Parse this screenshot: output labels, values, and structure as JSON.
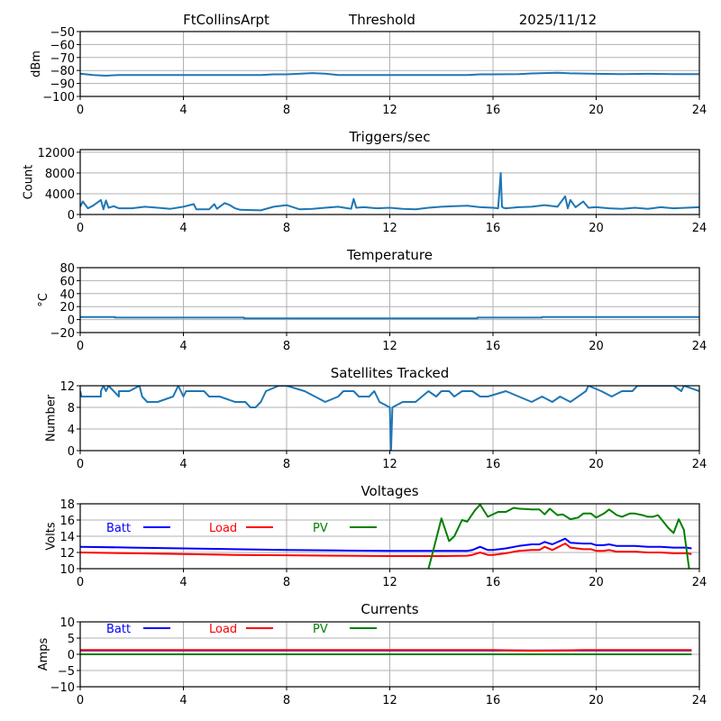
{
  "header": {
    "station": "FtCollinsArpt",
    "mode": "Threshold",
    "date": "2025/11/12"
  },
  "colors": {
    "series_default": "#1f77b4",
    "batt": "#0000ff",
    "load": "#ff0000",
    "pv": "#008000",
    "grid": "#b0b0b0"
  },
  "chart_data": [
    {
      "id": "threshold",
      "type": "line",
      "title": "",
      "xlabel": "",
      "ylabel": "dBm",
      "xlim": [
        0,
        24
      ],
      "ylim": [
        -100,
        -50
      ],
      "xticks": [
        0,
        4,
        8,
        12,
        16,
        20,
        24
      ],
      "yticks": [
        -100,
        -90,
        -80,
        -70,
        -60,
        -50
      ],
      "ytick_labels": [
        "−100",
        "−90",
        "−80",
        "−70",
        "−60",
        "−50"
      ],
      "grid": true,
      "series": [
        {
          "name": "threshold",
          "color": "#1f77b4",
          "x": [
            0,
            0.5,
            1,
            1.5,
            2,
            3,
            4,
            5,
            6,
            7,
            7.5,
            8,
            9,
            9.5,
            10,
            11,
            12,
            13,
            14,
            15,
            15.5,
            16,
            17,
            17.5,
            18,
            18.5,
            19,
            20,
            21,
            22,
            23,
            24
          ],
          "y": [
            -82.5,
            -83.5,
            -84,
            -83.5,
            -83.5,
            -83.5,
            -83.5,
            -83.5,
            -83.5,
            -83.5,
            -83,
            -83,
            -82,
            -82.5,
            -83.5,
            -83.5,
            -83.5,
            -83.5,
            -83.5,
            -83.5,
            -83,
            -83,
            -82.8,
            -82.3,
            -82,
            -81.8,
            -82.2,
            -82.6,
            -82.8,
            -82.6,
            -82.8,
            -82.8
          ]
        }
      ]
    },
    {
      "id": "triggers",
      "type": "line",
      "title": "Triggers/sec",
      "xlabel": "",
      "ylabel": "Count",
      "xlim": [
        0,
        24
      ],
      "ylim": [
        0,
        12500
      ],
      "xticks": [
        0,
        4,
        8,
        12,
        16,
        20,
        24
      ],
      "yticks": [
        0,
        4000,
        8000,
        12000
      ],
      "ytick_labels": [
        "0",
        "4000",
        "8000",
        "12000"
      ],
      "grid": true,
      "series": [
        {
          "name": "triggers",
          "color": "#1f77b4",
          "x": [
            0,
            0.1,
            0.3,
            0.5,
            0.8,
            0.9,
            1.0,
            1.1,
            1.3,
            1.5,
            2,
            2.5,
            3,
            3.5,
            4,
            4.4,
            4.5,
            5,
            5.2,
            5.3,
            5.6,
            5.8,
            6,
            6.2,
            7,
            7.5,
            8,
            8.5,
            9,
            9.5,
            10,
            10.5,
            10.6,
            10.7,
            11,
            11.5,
            12,
            12.5,
            13,
            13.5,
            14,
            14.5,
            15,
            15.5,
            16,
            16.2,
            16.3,
            16.35,
            16.4,
            16.5,
            17,
            17.5,
            18,
            18.5,
            18.8,
            18.9,
            19,
            19.2,
            19.5,
            19.7,
            20,
            20.5,
            21,
            21.5,
            22,
            22.5,
            23,
            23.5,
            24
          ],
          "y": [
            1500,
            2500,
            1200,
            1700,
            2800,
            1000,
            2700,
            1300,
            1600,
            1200,
            1200,
            1500,
            1300,
            1100,
            1500,
            2000,
            1000,
            1000,
            2000,
            1100,
            2200,
            1800,
            1200,
            900,
            800,
            1500,
            1800,
            1000,
            1100,
            1300,
            1500,
            1100,
            3000,
            1300,
            1400,
            1200,
            1300,
            1100,
            1000,
            1300,
            1500,
            1600,
            1700,
            1400,
            1300,
            1200,
            8000,
            1500,
            1300,
            1200,
            1400,
            1500,
            1800,
            1500,
            3500,
            1200,
            2800,
            1400,
            2500,
            1300,
            1400,
            1200,
            1100,
            1300,
            1100,
            1400,
            1200,
            1300,
            1400
          ]
        }
      ]
    },
    {
      "id": "temperature",
      "type": "line",
      "title": "Temperature",
      "xlabel": "",
      "ylabel": "°C",
      "xlim": [
        0,
        24
      ],
      "ylim": [
        -20,
        80
      ],
      "xticks": [
        0,
        4,
        8,
        12,
        16,
        20,
        24
      ],
      "yticks": [
        -20,
        0,
        20,
        40,
        60,
        80
      ],
      "ytick_labels": [
        "−20",
        "0",
        "20",
        "40",
        "60",
        "80"
      ],
      "grid": true,
      "series": [
        {
          "name": "temperature",
          "color": "#1f77b4",
          "x": [
            0,
            1.35,
            1.35,
            6.35,
            6.35,
            15.4,
            15.4,
            17.9,
            17.9,
            24
          ],
          "y": [
            4,
            4,
            3,
            3,
            2,
            2,
            3,
            3,
            4,
            4
          ]
        }
      ]
    },
    {
      "id": "satellites",
      "type": "line",
      "title": "Satellites Tracked",
      "xlabel": "",
      "ylabel": "Number",
      "xlim": [
        0,
        24
      ],
      "ylim": [
        0,
        12
      ],
      "xticks": [
        0,
        4,
        8,
        12,
        16,
        20,
        24
      ],
      "yticks": [
        0,
        4,
        8,
        12
      ],
      "ytick_labels": [
        "0",
        "4",
        "8",
        "12"
      ],
      "grid": true,
      "series": [
        {
          "name": "satellites",
          "color": "#1f77b4",
          "x": [
            0,
            0.05,
            0.1,
            0.8,
            0.8,
            0.9,
            1.0,
            1.1,
            1.3,
            1.5,
            1.5,
            1.9,
            2.3,
            2.4,
            2.6,
            3.0,
            3.6,
            3.8,
            4.0,
            4.1,
            4.8,
            5.0,
            5.4,
            6.0,
            6.4,
            6.6,
            6.8,
            7.0,
            7.2,
            7.7,
            8.0,
            8.7,
            9.1,
            9.5,
            10.0,
            10.2,
            10.6,
            10.8,
            11.2,
            11.4,
            11.6,
            12.0,
            12.05,
            12.1,
            12.5,
            13.0,
            13.5,
            13.8,
            14.0,
            14.3,
            14.5,
            14.8,
            15.2,
            15.5,
            15.8,
            16.5,
            17.0,
            17.5,
            17.9,
            18.3,
            18.6,
            19.0,
            19.6,
            19.7,
            20.2,
            20.6,
            21.0,
            21.4,
            21.6,
            22.0,
            22.4,
            23.0,
            23.3,
            23.4,
            24
          ],
          "y": [
            11,
            10,
            10,
            10,
            11,
            12,
            11,
            12,
            11,
            10,
            11,
            11,
            12,
            10,
            9,
            9,
            10,
            12,
            10,
            11,
            11,
            10,
            10,
            9,
            9,
            8,
            8,
            9,
            11,
            12,
            12,
            11,
            10,
            9,
            10,
            11,
            11,
            10,
            10,
            11,
            9,
            8,
            0,
            8,
            9,
            9,
            11,
            10,
            11,
            11,
            10,
            11,
            11,
            10,
            10,
            11,
            10,
            9,
            10,
            9,
            10,
            9,
            11,
            12,
            11,
            10,
            11,
            11,
            12,
            12,
            12,
            12,
            11,
            12,
            11
          ]
        }
      ]
    },
    {
      "id": "voltages",
      "type": "line",
      "title": "Voltages",
      "xlabel": "",
      "ylabel": "Volts",
      "xlim": [
        0,
        24
      ],
      "ylim": [
        10,
        18
      ],
      "xticks": [
        0,
        4,
        8,
        12,
        16,
        20,
        24
      ],
      "yticks": [
        10,
        12,
        14,
        16,
        18
      ],
      "ytick_labels": [
        "10",
        "12",
        "14",
        "16",
        "18"
      ],
      "grid": true,
      "legend": "top-left, horizontal inline",
      "series": [
        {
          "name": "Batt",
          "color": "#0000ff",
          "x": [
            0,
            2,
            4,
            6,
            8,
            10,
            12,
            13,
            14,
            15,
            15.2,
            15.5,
            15.8,
            16,
            16.5,
            17,
            17.5,
            17.8,
            18,
            18.3,
            18.8,
            19,
            19.5,
            19.8,
            20,
            20.3,
            20.5,
            20.8,
            21,
            21.5,
            22,
            22.5,
            23,
            23.5,
            23.7
          ],
          "y": [
            12.7,
            12.6,
            12.5,
            12.4,
            12.3,
            12.25,
            12.2,
            12.2,
            12.2,
            12.2,
            12.3,
            12.7,
            12.3,
            12.3,
            12.5,
            12.8,
            13.0,
            13.0,
            13.3,
            13.0,
            13.7,
            13.2,
            13.1,
            13.1,
            12.9,
            12.9,
            13.0,
            12.8,
            12.8,
            12.8,
            12.7,
            12.7,
            12.6,
            12.6,
            12.5
          ]
        },
        {
          "name": "Load",
          "color": "#ff0000",
          "x": [
            0,
            2,
            4,
            6,
            8,
            10,
            12,
            13,
            14,
            15,
            15.2,
            15.5,
            15.8,
            16,
            16.5,
            17,
            17.5,
            17.8,
            18,
            18.3,
            18.8,
            19,
            19.5,
            19.8,
            20,
            20.3,
            20.5,
            20.8,
            21,
            21.5,
            22,
            22.5,
            23,
            23.5,
            23.7
          ],
          "y": [
            12.0,
            11.9,
            11.8,
            11.7,
            11.65,
            11.6,
            11.55,
            11.55,
            11.55,
            11.6,
            11.7,
            12.0,
            11.7,
            11.7,
            11.9,
            12.2,
            12.3,
            12.3,
            12.7,
            12.3,
            13.1,
            12.6,
            12.4,
            12.4,
            12.2,
            12.2,
            12.3,
            12.1,
            12.1,
            12.1,
            12.0,
            12.0,
            11.9,
            11.9,
            11.8
          ]
        },
        {
          "name": "PV",
          "color": "#008000",
          "x": [
            13.5,
            13.6,
            14.0,
            14.3,
            14.5,
            14.8,
            15.0,
            15.3,
            15.5,
            15.8,
            16.2,
            16.5,
            16.8,
            17.0,
            17.5,
            17.8,
            18.0,
            18.2,
            18.5,
            18.7,
            19.0,
            19.3,
            19.5,
            19.8,
            20.0,
            20.3,
            20.5,
            20.8,
            21.0,
            21.3,
            21.5,
            21.8,
            22.0,
            22.2,
            22.4,
            22.8,
            23.0,
            23.2,
            23.4,
            23.6
          ],
          "y": [
            10,
            11.2,
            16.2,
            13.4,
            14.0,
            16.0,
            15.8,
            17.2,
            17.9,
            16.4,
            17.0,
            17.0,
            17.5,
            17.4,
            17.3,
            17.3,
            16.7,
            17.4,
            16.6,
            16.7,
            16.1,
            16.3,
            16.8,
            16.8,
            16.3,
            16.8,
            17.3,
            16.6,
            16.4,
            16.8,
            16.8,
            16.6,
            16.4,
            16.4,
            16.6,
            15.0,
            14.4,
            16.1,
            14.8,
            10
          ]
        }
      ]
    },
    {
      "id": "currents",
      "type": "line",
      "title": "Currents",
      "xlabel": "",
      "ylabel": "Amps",
      "xlim": [
        0,
        24
      ],
      "ylim": [
        -10,
        10
      ],
      "xticks": [
        0,
        4,
        8,
        12,
        16,
        20,
        24
      ],
      "yticks": [
        -10,
        -5,
        0,
        5,
        10
      ],
      "ytick_labels": [
        "−10",
        "−5",
        "0",
        "5",
        "10"
      ],
      "grid": true,
      "legend": "top-left, horizontal inline",
      "series": [
        {
          "name": "Batt",
          "color": "#0000ff",
          "x": [
            0,
            23.7
          ],
          "y": [
            1.2,
            1.2
          ]
        },
        {
          "name": "Load",
          "color": "#ff0000",
          "x": [
            0,
            12,
            14,
            16,
            17.5,
            18.5,
            19.5,
            20,
            22,
            23.7
          ],
          "y": [
            1.3,
            1.3,
            1.3,
            1.3,
            1.1,
            1.2,
            1.3,
            1.3,
            1.3,
            1.3
          ]
        },
        {
          "name": "PV",
          "color": "#008000",
          "x": [
            0,
            23.7
          ],
          "y": [
            0,
            0
          ]
        }
      ]
    }
  ]
}
